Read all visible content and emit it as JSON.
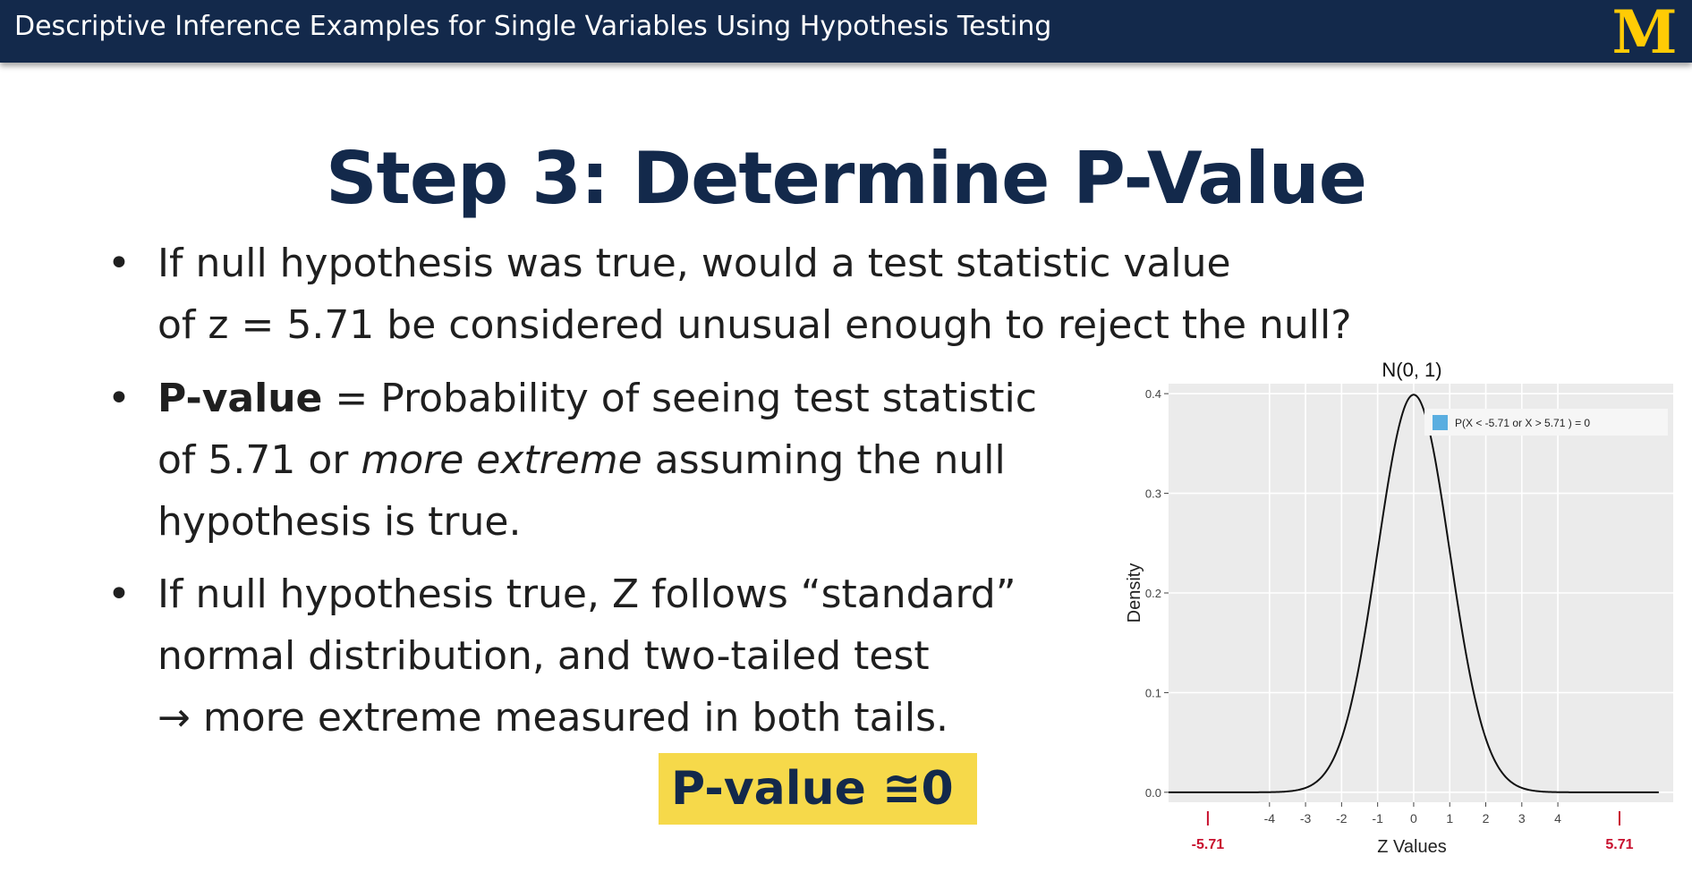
{
  "header": {
    "title": "Descriptive Inference Examples for Single Variables Using Hypothesis Testing",
    "logo_text": "M",
    "colors": {
      "navy": "#13294b",
      "maize": "#ffcb05"
    }
  },
  "slide": {
    "title": "Step 3: Determine P-Value",
    "bullets": [
      {
        "line1": "If null hypothesis was true, would a test statistic value",
        "line2": "of z = 5.71 be considered unusual enough to reject the null?"
      },
      {
        "label": "P-value",
        "rest1": " = Probability of seeing test statistic",
        "line2_a": "of 5.71 or ",
        "line2_italic": "more extreme",
        "line2_b": " assuming the null",
        "line3": "hypothesis is true."
      },
      {
        "line1": "If null hypothesis true, Z follows “standard”",
        "line2": "normal distribution, and two-tailed test",
        "line3": "→ more extreme measured in both tails."
      }
    ],
    "answer": "P-value ≅0",
    "bullet_glyph": "•"
  },
  "chart_data": {
    "type": "line",
    "title": "N(0, 1)",
    "xlabel": "Z Values",
    "ylabel": "Density",
    "xlim": [
      -6.8,
      7.2
    ],
    "ylim": [
      -0.01,
      0.41
    ],
    "x_ticks": [
      "-4",
      "-3",
      "-2",
      "-1",
      "0",
      "1",
      "2",
      "3",
      "4"
    ],
    "y_ticks": [
      "0.0",
      "0.1",
      "0.2",
      "0.3",
      "0.4"
    ],
    "series": [
      {
        "name": "P(X < -5.71 or X > 5.71 ) = 0",
        "color": "#5aaee0",
        "curve": "standard normal density",
        "x_range": [
          -6.8,
          6.8
        ]
      }
    ],
    "annotations": [
      {
        "x": -5.71,
        "label": "-5.71",
        "color": "#c8102e"
      },
      {
        "x": 5.71,
        "label": "5.71",
        "color": "#c8102e"
      }
    ],
    "legend": "top-right",
    "grid": true,
    "panel_color": "#ebebeb"
  }
}
